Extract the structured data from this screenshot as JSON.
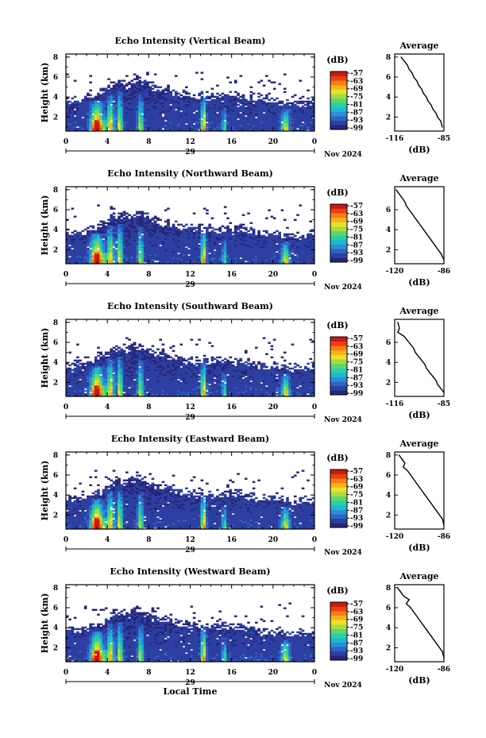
{
  "chart_data": [
    {
      "type": "heatmap",
      "title": "Echo Intensity (Vertical Beam)",
      "ylabel": "Height (km)",
      "x_ticks": [
        "0",
        "4",
        "8",
        "12",
        "16",
        "20",
        "0"
      ],
      "date_tick": "29",
      "date_label": "Nov 2024",
      "y_ticks": [
        "8",
        "6",
        "4",
        "2"
      ],
      "xlim": [
        0,
        24
      ],
      "ylim": [
        0.6,
        8.3
      ],
      "colorbar": {
        "label": "(dB)",
        "ticks": [
          "-57",
          "-63",
          "-69",
          "-75",
          "-81",
          "-87",
          "-93",
          "-99"
        ]
      },
      "profile": {
        "title": "Average",
        "x_ticks": [
          "-116",
          "-85"
        ],
        "xlabel": "(dB)",
        "y_ticks": [
          "8",
          "6",
          "4",
          "2"
        ],
        "x": [
          -112,
          -110,
          -108,
          -107,
          -105,
          -104,
          -102,
          -101,
          -99,
          -98,
          -96,
          -95,
          -93,
          -92,
          -90,
          -89,
          -87,
          -86
        ],
        "y": [
          8,
          7.6,
          7.2,
          6.8,
          6.4,
          6.0,
          5.6,
          5.2,
          4.8,
          4.4,
          4.0,
          3.6,
          3.2,
          2.8,
          2.4,
          2.0,
          1.6,
          1.0
        ]
      }
    },
    {
      "type": "heatmap",
      "title": "Echo Intensity (Northward Beam)",
      "ylabel": "Height (km)",
      "x_ticks": [
        "0",
        "4",
        "8",
        "12",
        "16",
        "20",
        "0"
      ],
      "date_tick": "29",
      "date_label": "Nov 2024",
      "y_ticks": [
        "8",
        "6",
        "4",
        "2"
      ],
      "xlim": [
        0,
        24
      ],
      "ylim": [
        0.6,
        8.3
      ],
      "colorbar": {
        "label": "(dB)",
        "ticks": [
          "-57",
          "-63",
          "-69",
          "-75",
          "-81",
          "-87",
          "-93",
          "-99"
        ]
      },
      "profile": {
        "title": "Average",
        "x_ticks": [
          "-120",
          "-86"
        ],
        "xlabel": "(dB)",
        "y_ticks": [
          "6",
          "4",
          "2"
        ],
        "x": [
          -119,
          -117,
          -115,
          -113,
          -112,
          -110,
          -108,
          -106,
          -104,
          -102,
          -100,
          -98,
          -96,
          -94,
          -92,
          -90,
          -88,
          -86
        ],
        "y": [
          8,
          7.6,
          7.2,
          6.8,
          6.4,
          6.0,
          5.6,
          5.2,
          4.8,
          4.4,
          4.0,
          3.6,
          3.2,
          2.8,
          2.4,
          2.0,
          1.6,
          1.0
        ]
      }
    },
    {
      "type": "heatmap",
      "title": "Echo Intensity (Southward Beam)",
      "ylabel": "Height (km)",
      "x_ticks": [
        "0",
        "4",
        "8",
        "12",
        "16",
        "20",
        "0"
      ],
      "date_tick": "29",
      "date_label": "Nov 2024",
      "y_ticks": [
        "8",
        "6",
        "4",
        "2"
      ],
      "xlim": [
        0,
        24
      ],
      "ylim": [
        0.6,
        8.3
      ],
      "colorbar": {
        "label": "(dB)",
        "ticks": [
          "-57",
          "-63",
          "-69",
          "-75",
          "-81",
          "-87",
          "-93",
          "-99"
        ]
      },
      "profile": {
        "title": "Average",
        "x_ticks": [
          "-116",
          "-85"
        ],
        "xlabel": "(dB)",
        "y_ticks": [
          "6",
          "4",
          "2"
        ],
        "x": [
          -114,
          -113,
          -114,
          -110,
          -108,
          -106,
          -104,
          -103,
          -101,
          -99,
          -97,
          -96,
          -94,
          -92,
          -90,
          -89,
          -87,
          -85
        ],
        "y": [
          8,
          7.4,
          7.0,
          6.6,
          6.2,
          5.8,
          5.4,
          5.0,
          4.6,
          4.2,
          3.8,
          3.4,
          3.0,
          2.6,
          2.2,
          1.8,
          1.4,
          1.0
        ]
      }
    },
    {
      "type": "heatmap",
      "title": "Echo Intensity (Eastward Beam)",
      "ylabel": "Height (km)",
      "x_ticks": [
        "0",
        "4",
        "8",
        "12",
        "16",
        "20",
        "0"
      ],
      "date_tick": "29",
      "date_label": "Nov 2024",
      "y_ticks": [
        "8",
        "6",
        "4",
        "2"
      ],
      "xlim": [
        0,
        24
      ],
      "ylim": [
        0.6,
        8.3
      ],
      "colorbar": {
        "label": "(dB)",
        "ticks": [
          "-57",
          "-63",
          "-69",
          "-75",
          "-81",
          "-87",
          "-93",
          "-99"
        ]
      },
      "profile": {
        "title": "Average",
        "x_ticks": [
          "-120",
          "-86"
        ],
        "xlabel": "(dB)",
        "y_ticks": [
          "8",
          "6",
          "4",
          "2"
        ],
        "x": [
          -117,
          -115,
          -113,
          -114,
          -111,
          -109,
          -107,
          -105,
          -103,
          -101,
          -99,
          -97,
          -95,
          -93,
          -91,
          -89,
          -87,
          -86
        ],
        "y": [
          8,
          7.6,
          7.2,
          6.8,
          6.4,
          6.0,
          5.6,
          5.2,
          4.8,
          4.4,
          4.0,
          3.6,
          3.2,
          2.8,
          2.4,
          2.0,
          1.6,
          1.0
        ]
      }
    },
    {
      "type": "heatmap",
      "title": "Echo Intensity (Westward Beam)",
      "ylabel": "Height (km)",
      "x_ticks": [
        "0",
        "4",
        "8",
        "12",
        "16",
        "20",
        "0"
      ],
      "date_tick": "29",
      "date_label": "Nov 2024",
      "xlabel": "Local Time",
      "y_ticks": [
        "8",
        "6",
        "4",
        "2"
      ],
      "xlim": [
        0,
        24
      ],
      "ylim": [
        0.6,
        8.3
      ],
      "colorbar": {
        "label": "(dB)",
        "ticks": [
          "-57",
          "-63",
          "-69",
          "-75",
          "-81",
          "-87",
          "-93",
          "-99"
        ]
      },
      "profile": {
        "title": "Average",
        "x_ticks": [
          "-120",
          "-86"
        ],
        "xlabel": "(dB)",
        "y_ticks": [
          "8",
          "6",
          "4",
          "2"
        ],
        "x": [
          -118,
          -116,
          -114,
          -110,
          -112,
          -109,
          -107,
          -105,
          -103,
          -101,
          -99,
          -97,
          -95,
          -93,
          -91,
          -89,
          -87,
          -86
        ],
        "y": [
          8,
          7.6,
          7.2,
          6.8,
          6.4,
          6.0,
          5.6,
          5.2,
          4.8,
          4.4,
          4.0,
          3.6,
          3.2,
          2.8,
          2.4,
          2.0,
          1.6,
          1.0
        ]
      }
    }
  ]
}
